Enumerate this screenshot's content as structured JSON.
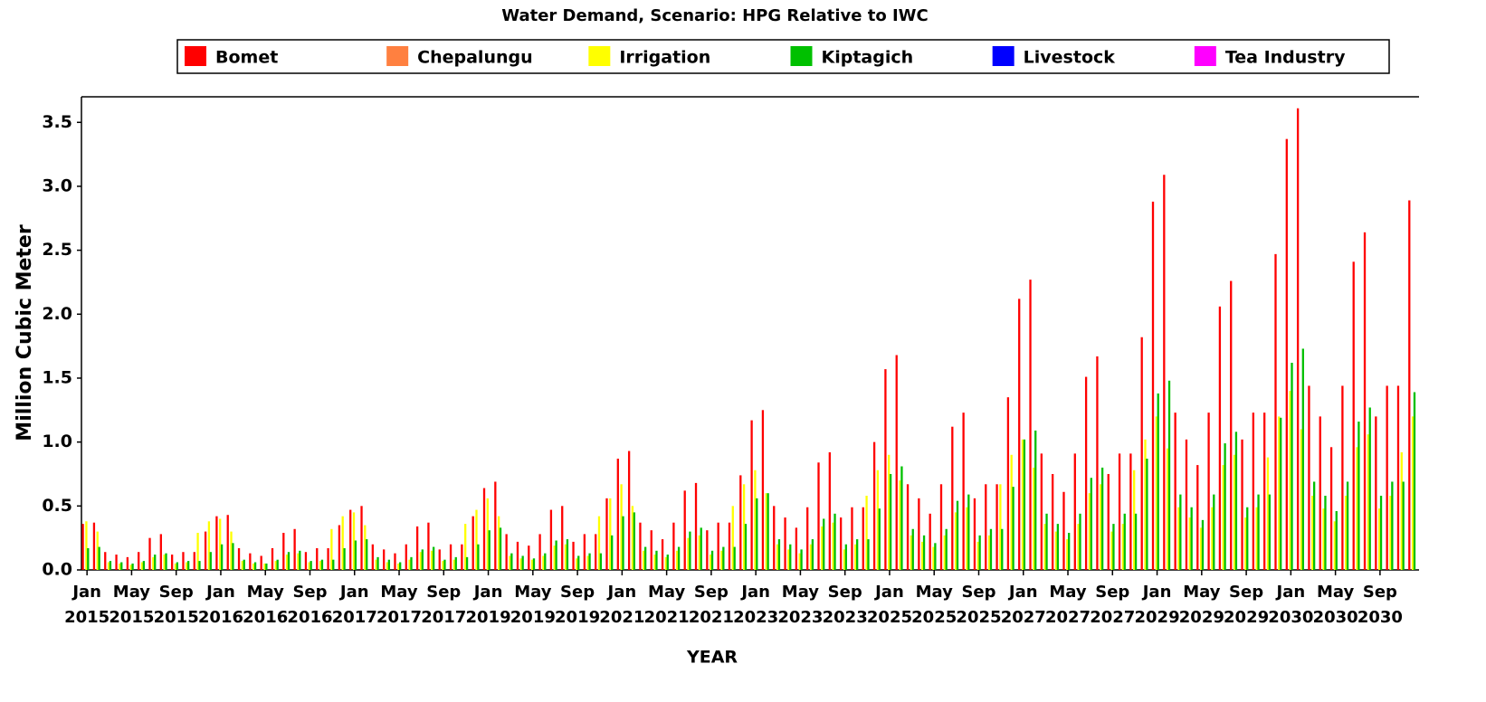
{
  "chart_data": {
    "type": "bar",
    "title": "Water Demand, Scenario: HPG Relative to IWC",
    "x_label": "YEAR",
    "y_label": "Million Cubic Meter",
    "ylim": [
      0,
      3.7
    ],
    "yticks": [
      {
        "value": 0,
        "label": "0.0"
      },
      0.5,
      {
        "value": 1,
        "label": "1.0"
      },
      1.5,
      {
        "value": 2,
        "label": "2.0"
      },
      2.5,
      {
        "value": 3,
        "label": "3.0"
      },
      3.5
    ],
    "categories": [
      "Jan 2015",
      null,
      null,
      null,
      "May 2015",
      null,
      null,
      null,
      "Sep 2015",
      null,
      null,
      null,
      "Jan 2016",
      null,
      null,
      null,
      "May 2016",
      null,
      null,
      null,
      "Sep 2016",
      null,
      null,
      null,
      "Jan 2017",
      null,
      null,
      null,
      "May 2017",
      null,
      null,
      null,
      "Sep 2017",
      null,
      null,
      null,
      "Jan 2019",
      null,
      null,
      null,
      "May 2019",
      null,
      null,
      null,
      "Sep 2019",
      null,
      null,
      null,
      "Jan 2021",
      null,
      null,
      null,
      "May 2021",
      null,
      null,
      null,
      "Sep 2021",
      null,
      null,
      null,
      "Jan 2023",
      null,
      null,
      null,
      "May 2023",
      null,
      null,
      null,
      "Sep 2023",
      null,
      null,
      null,
      "Jan 2025",
      null,
      null,
      null,
      "May 2025",
      null,
      null,
      null,
      "Sep 2025",
      null,
      null,
      null,
      "Jan 2027",
      null,
      null,
      null,
      "May 2027",
      null,
      null,
      null,
      "Sep 2027",
      null,
      null,
      null,
      "Jan 2029",
      null,
      null,
      null,
      "May 2029",
      null,
      null,
      null,
      "Sep 2029",
      null,
      null,
      null,
      "Jan 2030",
      null,
      null,
      null,
      "May 2030",
      null,
      null,
      null,
      "Sep 2030",
      null,
      null,
      null
    ],
    "series": [
      {
        "name": "Bomet",
        "color": "#ff0000",
        "values": [
          0.36,
          0.37,
          0.14,
          0.12,
          0.1,
          0.14,
          0.25,
          0.28,
          0.12,
          0.14,
          0.14,
          0.3,
          0.42,
          0.43,
          0.17,
          0.13,
          0.11,
          0.17,
          0.29,
          0.32,
          0.14,
          0.17,
          0.17,
          0.35,
          0.47,
          0.5,
          0.2,
          0.16,
          0.13,
          0.2,
          0.34,
          0.37,
          0.16,
          0.2,
          0.2,
          0.42,
          0.64,
          0.69,
          0.28,
          0.22,
          0.19,
          0.28,
          0.47,
          0.5,
          0.22,
          0.28,
          0.28,
          0.56,
          0.87,
          0.93,
          0.37,
          0.31,
          0.24,
          0.37,
          0.62,
          0.68,
          0.31,
          0.37,
          0.37,
          0.74,
          1.17,
          1.25,
          0.5,
          0.41,
          0.33,
          0.49,
          0.84,
          0.92,
          0.41,
          0.49,
          0.49,
          1.0,
          1.57,
          1.68,
          0.67,
          0.56,
          0.44,
          0.67,
          1.12,
          1.23,
          0.56,
          0.67,
          0.67,
          1.35,
          2.12,
          2.27,
          0.91,
          0.75,
          0.61,
          0.91,
          1.51,
          1.67,
          0.75,
          0.91,
          0.91,
          1.82,
          2.88,
          3.09,
          1.23,
          1.02,
          0.82,
          1.23,
          2.06,
          2.26,
          1.02,
          1.23,
          1.23,
          2.47,
          3.37,
          3.61,
          1.44,
          1.2,
          0.96,
          1.44,
          2.41,
          2.64,
          1.2,
          1.44,
          1.44,
          2.89
        ]
      },
      {
        "name": "Chepalungu",
        "color": "#ff8040",
        "values": [
          0,
          0,
          0,
          0,
          0,
          0,
          0,
          0,
          0,
          0,
          0,
          0,
          0,
          0,
          0,
          0,
          0,
          0,
          0,
          0,
          0,
          0,
          0,
          0,
          0,
          0,
          0,
          0,
          0,
          0,
          0,
          0,
          0,
          0,
          0,
          0,
          0,
          0,
          0,
          0,
          0,
          0,
          0,
          0,
          0,
          0,
          0,
          0,
          0,
          0,
          0,
          0,
          0,
          0,
          0,
          0,
          0,
          0,
          0,
          0,
          0,
          0,
          0,
          0,
          0,
          0,
          0,
          0,
          0,
          0,
          0,
          0,
          0,
          0,
          0,
          0,
          0,
          0,
          0,
          0,
          0,
          0,
          0,
          0,
          0,
          0,
          0,
          0,
          0,
          0,
          0,
          0,
          0,
          0,
          0,
          0,
          0,
          0,
          0,
          0,
          0,
          0,
          0,
          0,
          0,
          0,
          0,
          0,
          0,
          0,
          0,
          0,
          0,
          0,
          0,
          0,
          0,
          0,
          0,
          0
        ]
      },
      {
        "name": "Irrigation",
        "color": "#ffff00",
        "values": [
          0.38,
          0.3,
          0.06,
          0.05,
          0.04,
          0.06,
          0.1,
          0.12,
          0.05,
          0.06,
          0.29,
          0.38,
          0.4,
          0.3,
          0.07,
          0.05,
          0.05,
          0.07,
          0.12,
          0.13,
          0.06,
          0.07,
          0.32,
          0.42,
          0.45,
          0.35,
          0.08,
          0.06,
          0.05,
          0.08,
          0.14,
          0.15,
          0.07,
          0.08,
          0.36,
          0.47,
          0.56,
          0.42,
          0.11,
          0.09,
          0.08,
          0.11,
          0.19,
          0.2,
          0.09,
          0.11,
          0.42,
          0.56,
          0.67,
          0.5,
          0.15,
          0.12,
          0.1,
          0.15,
          0.25,
          0.27,
          0.12,
          0.15,
          0.5,
          0.67,
          0.78,
          0.6,
          0.2,
          0.16,
          0.13,
          0.2,
          0.34,
          0.37,
          0.16,
          0.2,
          0.58,
          0.78,
          0.9,
          0.7,
          0.27,
          0.22,
          0.18,
          0.27,
          0.45,
          0.49,
          0.22,
          0.27,
          0.67,
          0.9,
          1.02,
          0.8,
          0.36,
          0.3,
          0.24,
          0.36,
          0.6,
          0.67,
          0.3,
          0.36,
          0.78,
          1.02,
          1.2,
          0.95,
          0.49,
          0.41,
          0.33,
          0.49,
          0.82,
          0.9,
          0.41,
          0.49,
          0.88,
          1.2,
          1.4,
          1.1,
          0.58,
          0.48,
          0.38,
          0.58,
          0.96,
          1.06,
          0.48,
          0.58,
          0.92,
          1.2
        ]
      },
      {
        "name": "Kiptagich",
        "color": "#00c000",
        "values": [
          0.17,
          0.18,
          0.07,
          0.06,
          0.05,
          0.07,
          0.12,
          0.13,
          0.06,
          0.07,
          0.07,
          0.14,
          0.2,
          0.21,
          0.08,
          0.06,
          0.05,
          0.08,
          0.14,
          0.15,
          0.07,
          0.08,
          0.08,
          0.17,
          0.23,
          0.24,
          0.1,
          0.08,
          0.06,
          0.1,
          0.16,
          0.18,
          0.08,
          0.1,
          0.1,
          0.2,
          0.31,
          0.33,
          0.13,
          0.11,
          0.09,
          0.13,
          0.23,
          0.24,
          0.11,
          0.13,
          0.13,
          0.27,
          0.42,
          0.45,
          0.18,
          0.15,
          0.12,
          0.18,
          0.3,
          0.33,
          0.15,
          0.18,
          0.18,
          0.36,
          0.56,
          0.6,
          0.24,
          0.2,
          0.16,
          0.24,
          0.4,
          0.44,
          0.2,
          0.24,
          0.24,
          0.48,
          0.75,
          0.81,
          0.32,
          0.27,
          0.21,
          0.32,
          0.54,
          0.59,
          0.27,
          0.32,
          0.32,
          0.65,
          1.02,
          1.09,
          0.44,
          0.36,
          0.29,
          0.44,
          0.72,
          0.8,
          0.36,
          0.44,
          0.44,
          0.87,
          1.38,
          1.48,
          0.59,
          0.49,
          0.39,
          0.59,
          0.99,
          1.08,
          0.49,
          0.59,
          0.59,
          1.19,
          1.62,
          1.73,
          0.69,
          0.58,
          0.46,
          0.69,
          1.16,
          1.27,
          0.58,
          0.69,
          0.69,
          1.39
        ]
      },
      {
        "name": "Livestock",
        "color": "#0000ff",
        "values": [
          0,
          0,
          0,
          0,
          0,
          0,
          0,
          0,
          0,
          0,
          0,
          0,
          0,
          0,
          0,
          0,
          0,
          0,
          0,
          0,
          0,
          0,
          0,
          0,
          0,
          0,
          0,
          0,
          0,
          0,
          0,
          0,
          0,
          0,
          0,
          0,
          0,
          0,
          0,
          0,
          0,
          0,
          0,
          0,
          0,
          0,
          0,
          0,
          0,
          0,
          0,
          0,
          0,
          0,
          0,
          0,
          0,
          0,
          0,
          0,
          0,
          0,
          0,
          0,
          0,
          0,
          0,
          0,
          0,
          0,
          0,
          0,
          0,
          0,
          0,
          0,
          0,
          0,
          0,
          0,
          0,
          0,
          0,
          0,
          0,
          0,
          0,
          0,
          0,
          0,
          0,
          0,
          0,
          0,
          0,
          0,
          0,
          0,
          0,
          0,
          0,
          0,
          0,
          0,
          0,
          0,
          0,
          0,
          0,
          0,
          0,
          0,
          0,
          0,
          0,
          0,
          0,
          0,
          0,
          0
        ]
      },
      {
        "name": "Tea Industry",
        "color": "#ff00ff",
        "values": [
          0,
          0,
          0,
          0,
          0,
          0,
          0,
          0,
          0,
          0,
          0,
          0,
          0,
          0,
          0,
          0,
          0,
          0,
          0,
          0,
          0,
          0,
          0,
          0,
          0,
          0,
          0,
          0,
          0,
          0,
          0,
          0,
          0,
          0,
          0,
          0,
          0,
          0,
          0,
          0,
          0,
          0,
          0,
          0,
          0,
          0,
          0,
          0,
          0,
          0,
          0,
          0,
          0,
          0,
          0,
          0,
          0,
          0,
          0,
          0,
          0,
          0,
          0,
          0,
          0,
          0,
          0,
          0,
          0,
          0,
          0,
          0,
          0,
          0,
          0,
          0,
          0,
          0,
          0,
          0,
          0,
          0,
          0,
          0,
          0,
          0,
          0,
          0,
          0,
          0,
          0,
          0,
          0,
          0,
          0,
          0,
          0,
          0,
          0,
          0,
          0,
          0,
          0,
          0,
          0,
          0,
          0,
          0,
          0,
          0,
          0,
          0,
          0,
          0,
          0,
          0,
          0,
          0,
          0,
          0
        ]
      }
    ]
  }
}
